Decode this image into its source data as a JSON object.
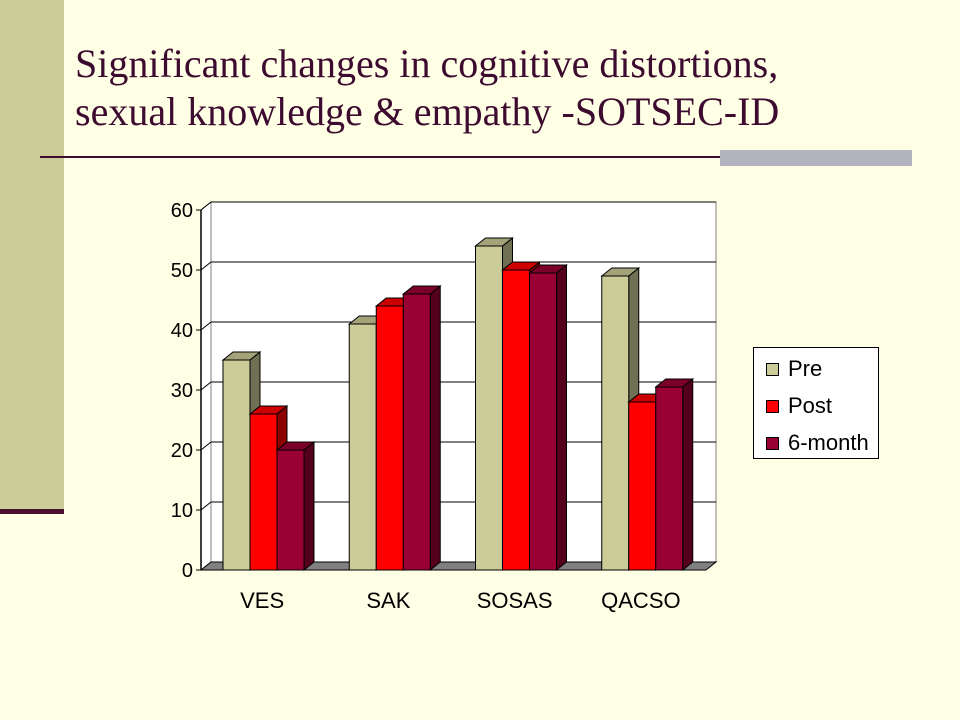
{
  "slide": {
    "title_line1": "Significant changes in cognitive distortions,",
    "title_line2": "sexual knowledge & empathy -SOTSEC-ID"
  },
  "colors": {
    "background": "#FFFFE5",
    "accent_bar": "#CCCC99",
    "title": "#3D0A30",
    "pre": "#CCCC99",
    "post": "#FF0000",
    "six_month": "#990033"
  },
  "chart_data": {
    "type": "bar",
    "style": "3d-clustered",
    "categories": [
      "VES",
      "SAK",
      "SOSAS",
      "QACSO"
    ],
    "series": [
      {
        "name": "Pre",
        "values": [
          35,
          41,
          54,
          49
        ],
        "color": "#CCCC99"
      },
      {
        "name": "Post",
        "values": [
          26,
          44,
          50,
          28
        ],
        "color": "#FF0000"
      },
      {
        "name": "6-month",
        "values": [
          20,
          46,
          49.5,
          30.5
        ],
        "color": "#990033"
      }
    ],
    "y_ticks": [
      "0",
      "10",
      "20",
      "30",
      "40",
      "50",
      "60"
    ],
    "ylim": [
      0,
      60
    ],
    "grid": true,
    "legend_position": "right"
  }
}
